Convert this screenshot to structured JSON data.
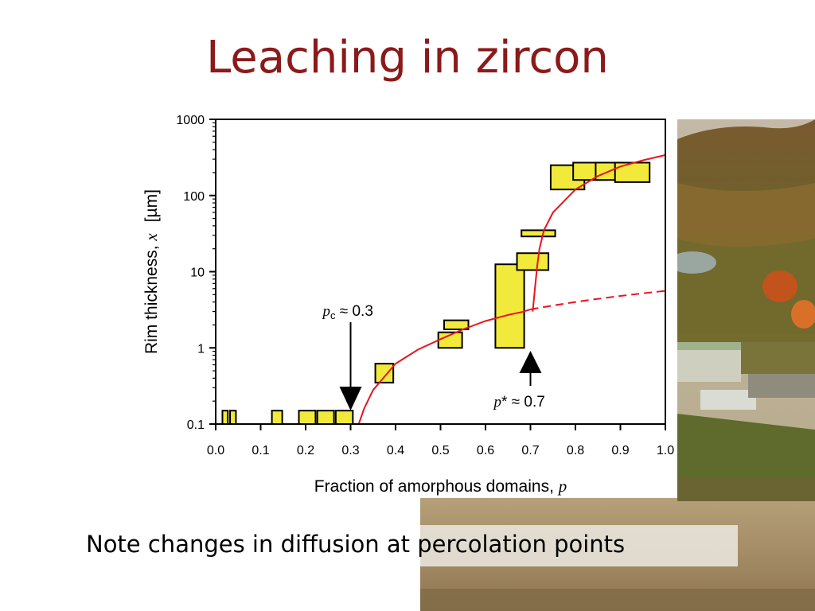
{
  "slide": {
    "title": "Leaching in zircon",
    "note": "Note changes in diffusion at percolation points"
  },
  "colors": {
    "title": "#8b1a1a",
    "box_fill": "#f2ea3a",
    "curve": "#e8141e",
    "arrow": "#000000"
  },
  "chart_data": {
    "type": "scatter",
    "xlabel": {
      "text": "Fraction of amorphous domains, ",
      "var": "p"
    },
    "ylabel": {
      "text": "Rim thickness, ",
      "var": "x",
      "unit": "[µm]"
    },
    "xlim": [
      0.0,
      1.0
    ],
    "ylim": [
      0.1,
      1000
    ],
    "y_scale": "log",
    "x_ticks": [
      "0.0",
      "0.1",
      "0.2",
      "0.3",
      "0.4",
      "0.5",
      "0.6",
      "0.7",
      "0.8",
      "0.9",
      "1.0"
    ],
    "y_ticks": [
      "0.1",
      "1",
      "10",
      "100",
      "1000"
    ],
    "grid": false,
    "boxes": [
      {
        "x0": 0.015,
        "x1": 0.027,
        "y0": 0.1,
        "y1": 0.15
      },
      {
        "x0": 0.032,
        "x1": 0.045,
        "y0": 0.1,
        "y1": 0.15
      },
      {
        "x0": 0.125,
        "x1": 0.148,
        "y0": 0.1,
        "y1": 0.15
      },
      {
        "x0": 0.185,
        "x1": 0.222,
        "y0": 0.1,
        "y1": 0.15
      },
      {
        "x0": 0.226,
        "x1": 0.263,
        "y0": 0.1,
        "y1": 0.15
      },
      {
        "x0": 0.267,
        "x1": 0.305,
        "y0": 0.1,
        "y1": 0.15
      },
      {
        "x0": 0.355,
        "x1": 0.395,
        "y0": 0.35,
        "y1": 0.62
      },
      {
        "x0": 0.495,
        "x1": 0.548,
        "y0": 1.0,
        "y1": 1.6
      },
      {
        "x0": 0.508,
        "x1": 0.562,
        "y0": 1.75,
        "y1": 2.3
      },
      {
        "x0": 0.622,
        "x1": 0.686,
        "y0": 1.0,
        "y1": 12.5
      },
      {
        "x0": 0.67,
        "x1": 0.74,
        "y0": 10.5,
        "y1": 17.5
      },
      {
        "x0": 0.68,
        "x1": 0.755,
        "y0": 29,
        "y1": 35
      },
      {
        "x0": 0.745,
        "x1": 0.82,
        "y0": 120,
        "y1": 250
      },
      {
        "x0": 0.795,
        "x1": 0.87,
        "y0": 160,
        "y1": 270
      },
      {
        "x0": 0.845,
        "x1": 0.905,
        "y0": 160,
        "y1": 270
      },
      {
        "x0": 0.888,
        "x1": 0.965,
        "y0": 150,
        "y1": 270
      }
    ],
    "curves": [
      {
        "style": "solid",
        "points": [
          [
            0.318,
            0.1
          ],
          [
            0.33,
            0.16
          ],
          [
            0.35,
            0.28
          ],
          [
            0.4,
            0.62
          ],
          [
            0.45,
            0.95
          ],
          [
            0.5,
            1.3
          ],
          [
            0.55,
            1.75
          ],
          [
            0.6,
            2.25
          ],
          [
            0.65,
            2.7
          ],
          [
            0.68,
            2.95
          ],
          [
            0.7,
            3.2
          ]
        ]
      },
      {
        "style": "dashed",
        "points": [
          [
            0.7,
            3.2
          ],
          [
            0.75,
            3.6
          ],
          [
            0.8,
            4.0
          ],
          [
            0.85,
            4.4
          ],
          [
            0.9,
            4.8
          ],
          [
            0.95,
            5.2
          ],
          [
            1.0,
            5.6
          ]
        ]
      },
      {
        "style": "solid",
        "points": [
          [
            0.705,
            3.0
          ],
          [
            0.71,
            6.0
          ],
          [
            0.715,
            12.0
          ],
          [
            0.72,
            20.0
          ],
          [
            0.73,
            35.0
          ],
          [
            0.75,
            60.0
          ],
          [
            0.8,
            120.0
          ],
          [
            0.85,
            180.0
          ],
          [
            0.9,
            240.0
          ],
          [
            0.95,
            290.0
          ],
          [
            1.0,
            340.0
          ]
        ]
      }
    ],
    "annotations": [
      {
        "var": "p",
        "sub": "c",
        "text": " ≈ 0.3",
        "x": 0.3,
        "direction": "down"
      },
      {
        "var": "p",
        "sub": "",
        "text": "* ≈ 0.7",
        "x": 0.7,
        "direction": "up"
      }
    ]
  }
}
